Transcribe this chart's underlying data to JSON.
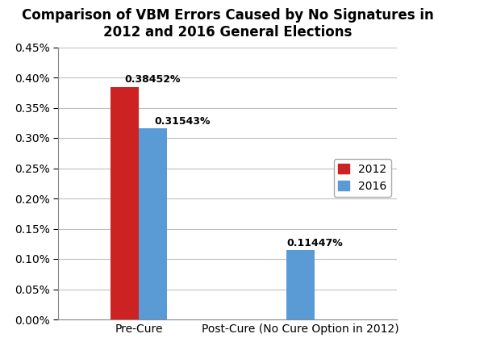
{
  "title": "Comparison of VBM Errors Caused by No Signatures in\n2012 and 2016 General Elections",
  "categories": [
    "Pre-Cure",
    "Post-Cure (No Cure Option in 2012)"
  ],
  "values_2012": [
    0.38452,
    null
  ],
  "values_2016": [
    0.31543,
    0.11447
  ],
  "labels_2012": [
    "0.38452%",
    null
  ],
  "labels_2016": [
    "0.31543%",
    "0.11447%"
  ],
  "color_2012": "#CC2222",
  "color_2016": "#5B9BD5",
  "ylim_max": 0.0045,
  "yticks": [
    0.0,
    0.0005,
    0.001,
    0.0015,
    0.002,
    0.0025,
    0.003,
    0.0035,
    0.004,
    0.0045
  ],
  "ytick_labels": [
    "0.00%",
    "0.05%",
    "0.10%",
    "0.15%",
    "0.20%",
    "0.25%",
    "0.30%",
    "0.35%",
    "0.40%",
    "0.45%"
  ],
  "legend_labels": [
    "2012",
    "2016"
  ],
  "bar_width": 0.35,
  "title_fontsize": 12,
  "tick_fontsize": 10,
  "label_fontsize": 9,
  "background_color": "#FFFFFF",
  "group_positions": [
    1.0,
    3.0
  ],
  "xlim": [
    0.0,
    4.2
  ]
}
